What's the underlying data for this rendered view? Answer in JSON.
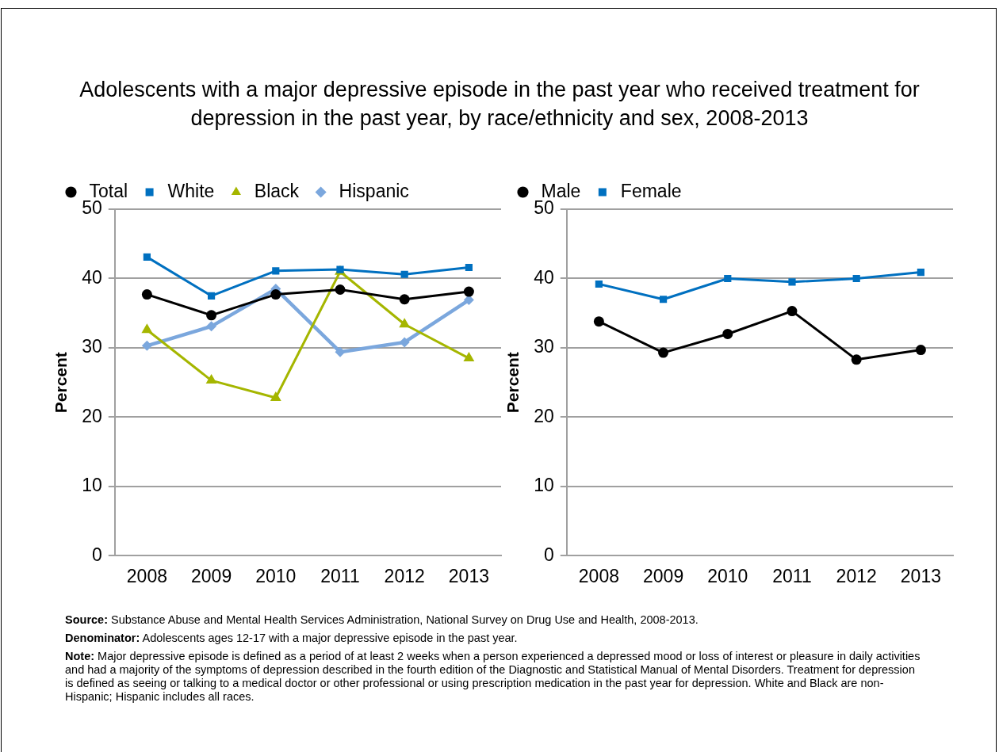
{
  "chart_data": [
    {
      "type": "line",
      "title": "Adolescents with a major depressive episode in the past year who received treatment for depression in the past year, by race/ethnicity and sex, 2008-2013",
      "ylabel": "Percent",
      "categories": [
        "2008",
        "2009",
        "2010",
        "2011",
        "2012",
        "2013"
      ],
      "series": [
        {
          "name": "Total",
          "color": "#000000",
          "marker": "circle",
          "values": [
            37.7,
            34.7,
            37.7,
            38.4,
            37.0,
            38.1
          ]
        },
        {
          "name": "White",
          "color": "#0070c0",
          "marker": "square",
          "values": [
            43.1,
            37.5,
            41.1,
            41.3,
            40.6,
            41.6
          ]
        },
        {
          "name": "Black",
          "color": "#a5b600",
          "marker": "triangle",
          "values": [
            32.6,
            25.3,
            22.8,
            41.0,
            33.4,
            28.5
          ]
        },
        {
          "name": "Hispanic",
          "color": "#7ba7dd",
          "marker": "diamond",
          "values": [
            30.3,
            33.1,
            38.5,
            29.4,
            30.8,
            36.9
          ]
        }
      ],
      "ylim": [
        0,
        50
      ],
      "yticks": [
        0,
        10,
        20,
        30,
        40,
        50
      ],
      "grid": "y",
      "legend": "top",
      "line_style": "solid",
      "annotations": [
        "Source: Substance Abuse and Mental Health Services Administration, National Survey on Drug Use and Health, 2008-2013.",
        "Denominator: Adolescents ages 12-17 with a major depressive episode in the past year.",
        "Note: Major depressive episode is defined as a period of at least 2 weeks when a person experienced a depressed mood or loss of interest or pleasure in daily activities and had a majority of the symptoms of depression described in the fourth edition of the Diagnostic and Statistical Manual of Mental Disorders. Treatment for depression is defined as seeing or talking to a medical doctor or other professional or using prescription medication in the past year for depression. White and Black are non-Hispanic; Hispanic includes all races."
      ]
    },
    {
      "type": "line",
      "ylabel": "Percent",
      "categories": [
        "2008",
        "2009",
        "2010",
        "2011",
        "2012",
        "2013"
      ],
      "series": [
        {
          "name": "Male",
          "color": "#000000",
          "marker": "circle",
          "values": [
            33.8,
            29.3,
            32.0,
            35.3,
            28.3,
            29.7
          ]
        },
        {
          "name": "Female",
          "color": "#0070c0",
          "marker": "square",
          "values": [
            39.2,
            37.0,
            40.0,
            39.5,
            40.0,
            40.9
          ]
        }
      ],
      "ylim": [
        0,
        50
      ],
      "yticks": [
        0,
        10,
        20,
        30,
        40,
        50
      ],
      "grid": "y",
      "legend": "top",
      "line_style": "solid"
    }
  ]
}
